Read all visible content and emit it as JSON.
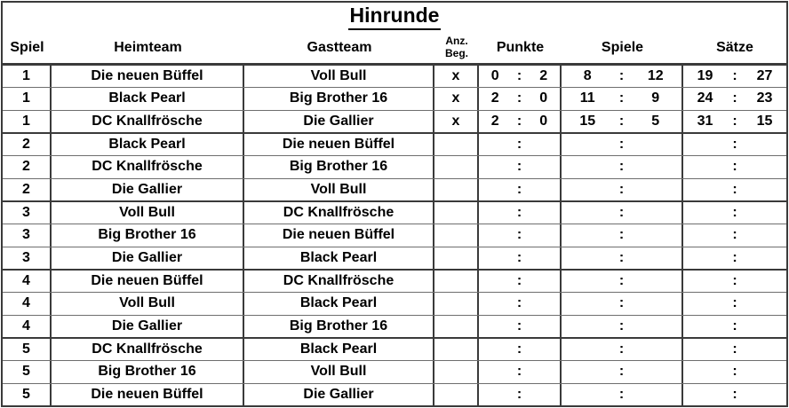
{
  "title": "Hinrunde",
  "columns": {
    "spiel": "Spiel",
    "heimteam": "Heimteam",
    "gastteam": "Gastteam",
    "anz_beg_line1": "Anz.",
    "anz_beg_line2": "Beg.",
    "punkte": "Punkte",
    "spiele": "Spiele",
    "saetze": "Sätze"
  },
  "score_separator": ":",
  "colors": {
    "text": "#000000",
    "background": "#ffffff",
    "border_strong": "#3a3a3a",
    "border_light": "#6e6e6e"
  },
  "rows": [
    {
      "spiel": "1",
      "heimteam": "Die neuen Büffel",
      "gastteam": "Voll Bull",
      "anz_beg": "x",
      "punkte_heim": "0",
      "punkte_gast": "2",
      "spiele_heim": "8",
      "spiele_gast": "12",
      "saetze_heim": "19",
      "saetze_gast": "27"
    },
    {
      "spiel": "1",
      "heimteam": "Black Pearl",
      "gastteam": "Big Brother 16",
      "anz_beg": "x",
      "punkte_heim": "2",
      "punkte_gast": "0",
      "spiele_heim": "11",
      "spiele_gast": "9",
      "saetze_heim": "24",
      "saetze_gast": "23"
    },
    {
      "spiel": "1",
      "heimteam": "DC Knallfrösche",
      "gastteam": "Die Gallier",
      "anz_beg": "x",
      "punkte_heim": "2",
      "punkte_gast": "0",
      "spiele_heim": "15",
      "spiele_gast": "5",
      "saetze_heim": "31",
      "saetze_gast": "15"
    },
    {
      "spiel": "2",
      "heimteam": "Black Pearl",
      "gastteam": "Die neuen Büffel",
      "anz_beg": "",
      "punkte_heim": "",
      "punkte_gast": "",
      "spiele_heim": "",
      "spiele_gast": "",
      "saetze_heim": "",
      "saetze_gast": ""
    },
    {
      "spiel": "2",
      "heimteam": "DC Knallfrösche",
      "gastteam": "Big Brother 16",
      "anz_beg": "",
      "punkte_heim": "",
      "punkte_gast": "",
      "spiele_heim": "",
      "spiele_gast": "",
      "saetze_heim": "",
      "saetze_gast": ""
    },
    {
      "spiel": "2",
      "heimteam": "Die Gallier",
      "gastteam": "Voll Bull",
      "anz_beg": "",
      "punkte_heim": "",
      "punkte_gast": "",
      "spiele_heim": "",
      "spiele_gast": "",
      "saetze_heim": "",
      "saetze_gast": ""
    },
    {
      "spiel": "3",
      "heimteam": "Voll Bull",
      "gastteam": "DC Knallfrösche",
      "anz_beg": "",
      "punkte_heim": "",
      "punkte_gast": "",
      "spiele_heim": "",
      "spiele_gast": "",
      "saetze_heim": "",
      "saetze_gast": ""
    },
    {
      "spiel": "3",
      "heimteam": "Big Brother 16",
      "gastteam": "Die neuen Büffel",
      "anz_beg": "",
      "punkte_heim": "",
      "punkte_gast": "",
      "spiele_heim": "",
      "spiele_gast": "",
      "saetze_heim": "",
      "saetze_gast": ""
    },
    {
      "spiel": "3",
      "heimteam": "Die Gallier",
      "gastteam": "Black Pearl",
      "anz_beg": "",
      "punkte_heim": "",
      "punkte_gast": "",
      "spiele_heim": "",
      "spiele_gast": "",
      "saetze_heim": "",
      "saetze_gast": ""
    },
    {
      "spiel": "4",
      "heimteam": "Die neuen Büffel",
      "gastteam": "DC Knallfrösche",
      "anz_beg": "",
      "punkte_heim": "",
      "punkte_gast": "",
      "spiele_heim": "",
      "spiele_gast": "",
      "saetze_heim": "",
      "saetze_gast": ""
    },
    {
      "spiel": "4",
      "heimteam": "Voll Bull",
      "gastteam": "Black Pearl",
      "anz_beg": "",
      "punkte_heim": "",
      "punkte_gast": "",
      "spiele_heim": "",
      "spiele_gast": "",
      "saetze_heim": "",
      "saetze_gast": ""
    },
    {
      "spiel": "4",
      "heimteam": "Die Gallier",
      "gastteam": "Big Brother 16",
      "anz_beg": "",
      "punkte_heim": "",
      "punkte_gast": "",
      "spiele_heim": "",
      "spiele_gast": "",
      "saetze_heim": "",
      "saetze_gast": ""
    },
    {
      "spiel": "5",
      "heimteam": "DC Knallfrösche",
      "gastteam": "Black Pearl",
      "anz_beg": "",
      "punkte_heim": "",
      "punkte_gast": "",
      "spiele_heim": "",
      "spiele_gast": "",
      "saetze_heim": "",
      "saetze_gast": ""
    },
    {
      "spiel": "5",
      "heimteam": "Big Brother 16",
      "gastteam": "Voll Bull",
      "anz_beg": "",
      "punkte_heim": "",
      "punkte_gast": "",
      "spiele_heim": "",
      "spiele_gast": "",
      "saetze_heim": "",
      "saetze_gast": ""
    },
    {
      "spiel": "5",
      "heimteam": "Die neuen Büffel",
      "gastteam": "Die Gallier",
      "anz_beg": "",
      "punkte_heim": "",
      "punkte_gast": "",
      "spiele_heim": "",
      "spiele_gast": "",
      "saetze_heim": "",
      "saetze_gast": ""
    }
  ]
}
